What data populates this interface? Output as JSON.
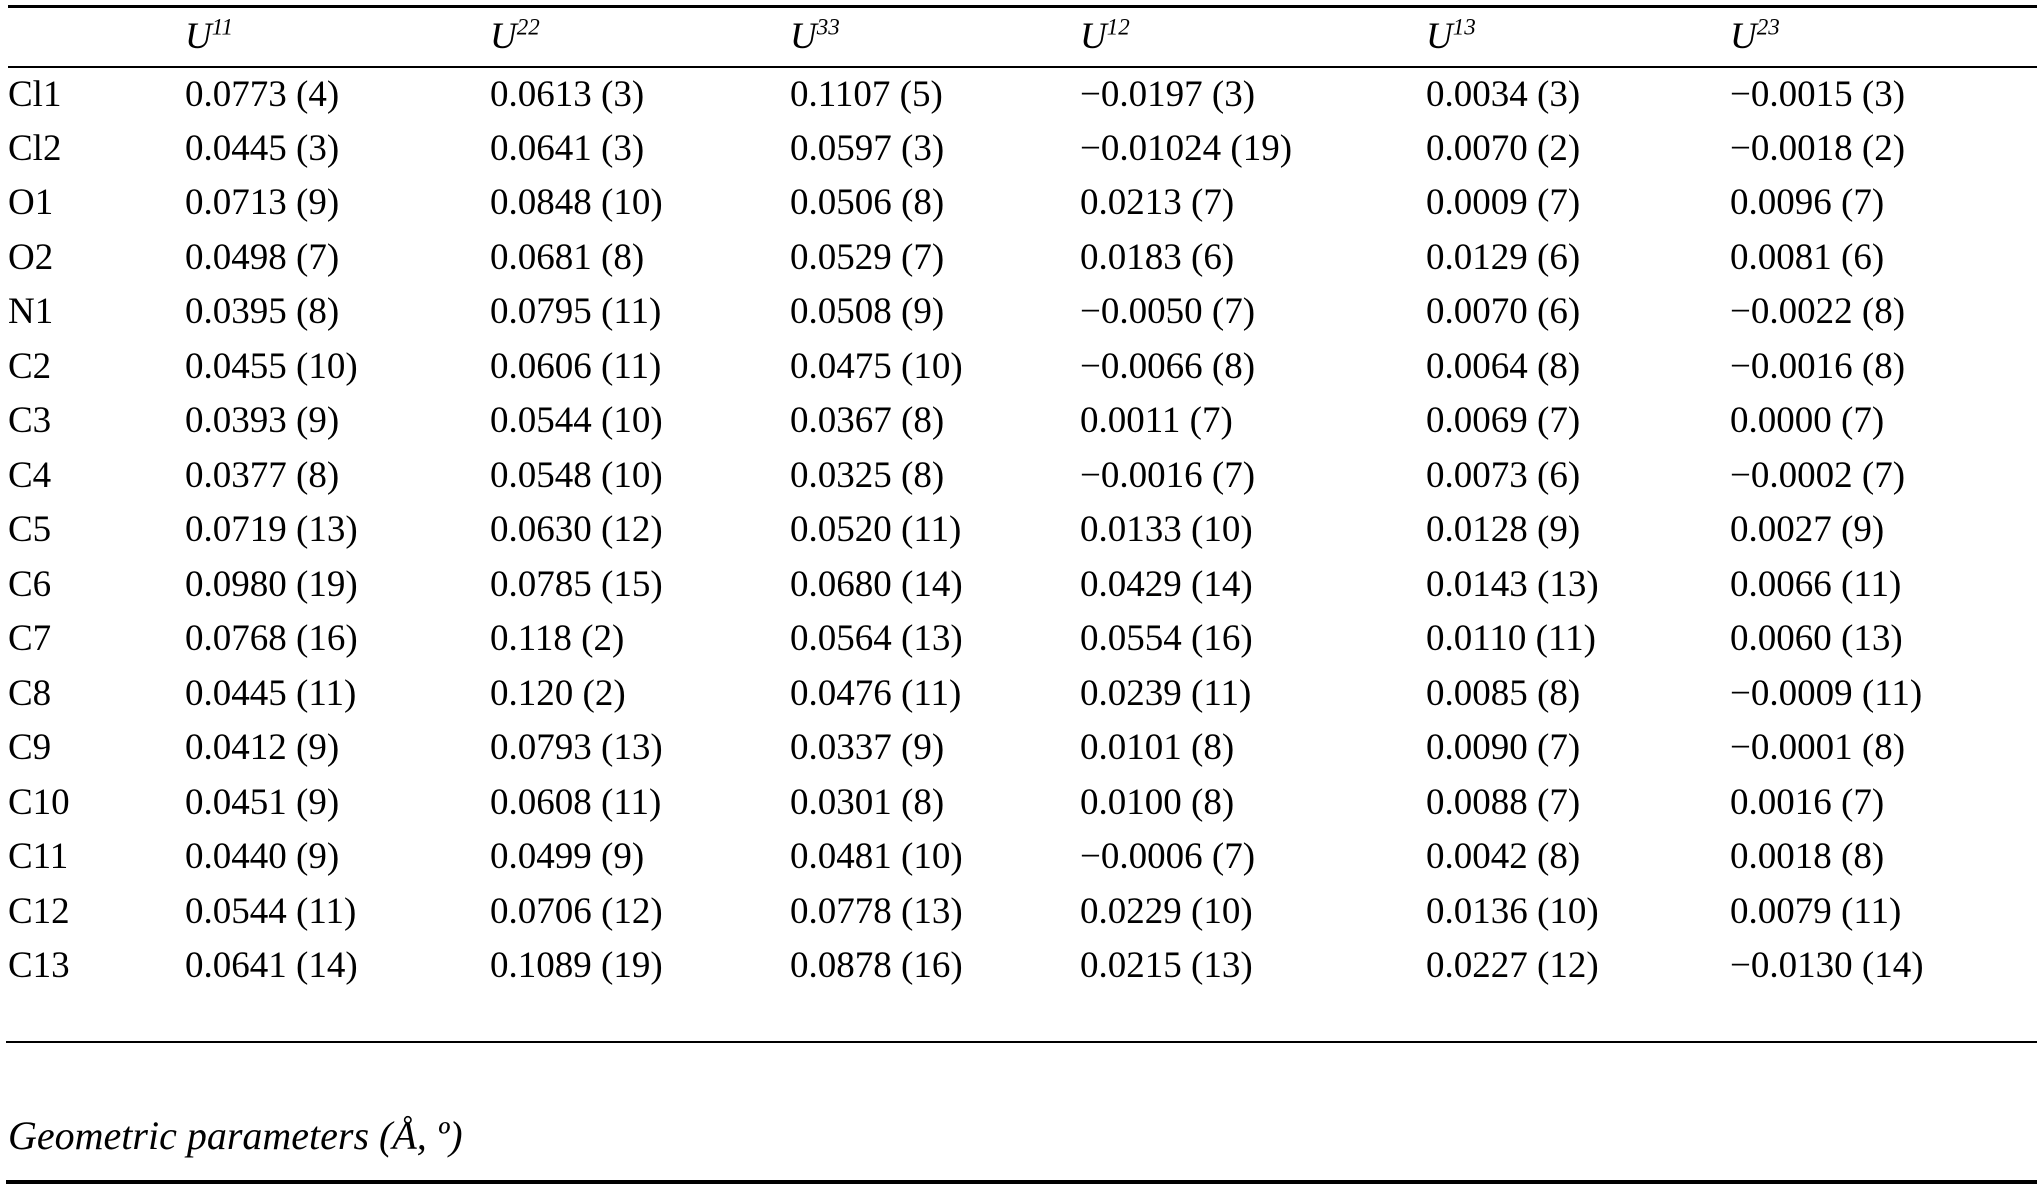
{
  "page": {
    "background": "#ffffff",
    "text_color": "#000000"
  },
  "table": {
    "atom_column_header": "",
    "headers": [
      {
        "base": "U",
        "sup": "11"
      },
      {
        "base": "U",
        "sup": "22"
      },
      {
        "base": "U",
        "sup": "33"
      },
      {
        "base": "U",
        "sup": "12"
      },
      {
        "base": "U",
        "sup": "13"
      },
      {
        "base": "U",
        "sup": "23"
      }
    ],
    "rows": [
      {
        "atom": "Cl1",
        "values": [
          "0.0773 (4)",
          "0.0613 (3)",
          "0.1107 (5)",
          "−0.0197 (3)",
          "0.0034 (3)",
          "−0.0015 (3)"
        ]
      },
      {
        "atom": "Cl2",
        "values": [
          "0.0445 (3)",
          "0.0641 (3)",
          "0.0597 (3)",
          "−0.01024 (19)",
          "0.0070 (2)",
          "−0.0018 (2)"
        ]
      },
      {
        "atom": "O1",
        "values": [
          "0.0713 (9)",
          "0.0848 (10)",
          "0.0506 (8)",
          "0.0213 (7)",
          "0.0009 (7)",
          "0.0096 (7)"
        ]
      },
      {
        "atom": "O2",
        "values": [
          "0.0498 (7)",
          "0.0681 (8)",
          "0.0529 (7)",
          "0.0183 (6)",
          "0.0129 (6)",
          "0.0081 (6)"
        ]
      },
      {
        "atom": "N1",
        "values": [
          "0.0395 (8)",
          "0.0795 (11)",
          "0.0508 (9)",
          "−0.0050 (7)",
          "0.0070 (6)",
          "−0.0022 (8)"
        ]
      },
      {
        "atom": "C2",
        "values": [
          "0.0455 (10)",
          "0.0606 (11)",
          "0.0475 (10)",
          "−0.0066 (8)",
          "0.0064 (8)",
          "−0.0016 (8)"
        ]
      },
      {
        "atom": "C3",
        "values": [
          "0.0393 (9)",
          "0.0544 (10)",
          "0.0367 (8)",
          "0.0011 (7)",
          "0.0069 (7)",
          "0.0000 (7)"
        ]
      },
      {
        "atom": "C4",
        "values": [
          "0.0377 (8)",
          "0.0548 (10)",
          "0.0325 (8)",
          "−0.0016 (7)",
          "0.0073 (6)",
          "−0.0002 (7)"
        ]
      },
      {
        "atom": "C5",
        "values": [
          "0.0719 (13)",
          "0.0630 (12)",
          "0.0520 (11)",
          "0.0133 (10)",
          "0.0128 (9)",
          "0.0027 (9)"
        ]
      },
      {
        "atom": "C6",
        "values": [
          "0.0980 (19)",
          "0.0785 (15)",
          "0.0680 (14)",
          "0.0429 (14)",
          "0.0143 (13)",
          "0.0066 (11)"
        ]
      },
      {
        "atom": "C7",
        "values": [
          "0.0768 (16)",
          "0.118 (2)",
          "0.0564 (13)",
          "0.0554 (16)",
          "0.0110 (11)",
          "0.0060 (13)"
        ]
      },
      {
        "atom": "C8",
        "values": [
          "0.0445 (11)",
          "0.120 (2)",
          "0.0476 (11)",
          "0.0239 (11)",
          "0.0085 (8)",
          "−0.0009 (11)"
        ]
      },
      {
        "atom": "C9",
        "values": [
          "0.0412 (9)",
          "0.0793 (13)",
          "0.0337 (9)",
          "0.0101 (8)",
          "0.0090 (7)",
          "−0.0001 (8)"
        ]
      },
      {
        "atom": "C10",
        "values": [
          "0.0451 (9)",
          "0.0608 (11)",
          "0.0301 (8)",
          "0.0100 (8)",
          "0.0088 (7)",
          "0.0016 (7)"
        ]
      },
      {
        "atom": "C11",
        "values": [
          "0.0440 (9)",
          "0.0499 (9)",
          "0.0481 (10)",
          "−0.0006 (7)",
          "0.0042 (8)",
          "0.0018 (8)"
        ]
      },
      {
        "atom": "C12",
        "values": [
          "0.0544 (11)",
          "0.0706 (12)",
          "0.0778 (13)",
          "0.0229 (10)",
          "0.0136 (10)",
          "0.0079 (11)"
        ]
      },
      {
        "atom": "C13",
        "values": [
          "0.0641 (14)",
          "0.1089 (19)",
          "0.0878 (16)",
          "0.0215 (13)",
          "0.0227 (12)",
          "−0.0130 (14)"
        ]
      }
    ]
  },
  "section_caption": "Geometric parameters (Å, º)"
}
